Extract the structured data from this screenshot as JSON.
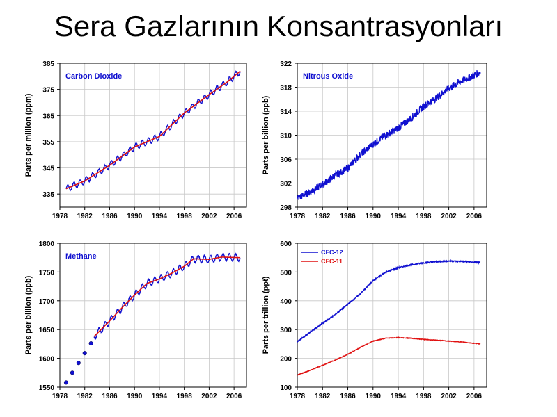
{
  "slide": {
    "title": "Sera Gazlarının Konsantrasyonları"
  },
  "chart_data": [
    {
      "type": "line",
      "id": "co2",
      "title": "Carbon Dioxide",
      "ylabel": "Parts per million (ppm)",
      "xlim": [
        1978,
        2008
      ],
      "ylim": [
        330,
        385
      ],
      "xticks": [
        1978,
        1982,
        1986,
        1990,
        1994,
        1998,
        2002,
        2006
      ],
      "yticks": [
        335,
        345,
        355,
        365,
        375,
        385
      ],
      "grid": true,
      "series": [
        {
          "color": "#1010d0",
          "seasonal_amplitude": 1.2,
          "x": [
            1979,
            1982,
            1986,
            1990,
            1994,
            1998,
            2002,
            2005,
            2007
          ],
          "y": [
            337,
            340,
            346,
            353,
            357,
            366,
            373,
            378,
            382
          ]
        },
        {
          "color": "#e01010",
          "x": [
            1979,
            1982,
            1986,
            1990,
            1994,
            1998,
            2002,
            2005,
            2007
          ],
          "y": [
            337,
            340,
            346,
            353,
            357,
            366,
            373,
            378,
            382
          ]
        }
      ]
    },
    {
      "type": "line",
      "id": "n2o",
      "title": "Nitrous Oxide",
      "ylabel": "Parts per billion (ppb)",
      "xlim": [
        1978,
        2008
      ],
      "ylim": [
        298,
        322
      ],
      "xticks": [
        1978,
        1982,
        1986,
        1990,
        1994,
        1998,
        2002,
        2006
      ],
      "yticks": [
        298,
        302,
        306,
        310,
        314,
        318,
        322
      ],
      "grid": true,
      "series": [
        {
          "color": "#1010d0",
          "noise": 0.6,
          "x": [
            1978,
            1980,
            1982,
            1984,
            1986,
            1988,
            1990,
            1992,
            1994,
            1996,
            1998,
            2000,
            2002,
            2004,
            2007
          ],
          "y": [
            299.5,
            300.5,
            301.8,
            303.3,
            304.5,
            306.8,
            308.5,
            310.0,
            311.2,
            312.8,
            314.8,
            316.2,
            317.8,
            319.0,
            320.5
          ]
        }
      ]
    },
    {
      "type": "line",
      "id": "ch4",
      "title": "Methane",
      "ylabel": "Parts per billion (ppb)",
      "xlim": [
        1978,
        2008
      ],
      "ylim": [
        1550,
        1800
      ],
      "xticks": [
        1978,
        1982,
        1986,
        1990,
        1994,
        1998,
        2002,
        2006
      ],
      "yticks": [
        1550,
        1600,
        1650,
        1700,
        1750,
        1800
      ],
      "grid": true,
      "points": {
        "color": "#1010d0",
        "x": [
          1979,
          1980,
          1981,
          1982,
          1983
        ],
        "y": [
          1558,
          1575,
          1592,
          1609,
          1626
        ]
      },
      "series": [
        {
          "color": "#1010d0",
          "seasonal_amplitude": 6,
          "x": [
            1983.5,
            1986,
            1988,
            1990,
            1992,
            1994,
            1996,
            1998,
            1999.5,
            2002,
            2004,
            2007
          ],
          "y": [
            1638,
            1665,
            1688,
            1710,
            1730,
            1738,
            1748,
            1760,
            1773,
            1772,
            1776,
            1775
          ]
        },
        {
          "color": "#e01010",
          "x": [
            1983.5,
            1986,
            1988,
            1990,
            1992,
            1994,
            1996,
            1998,
            1999.5,
            2002,
            2004,
            2007
          ],
          "y": [
            1638,
            1665,
            1688,
            1710,
            1730,
            1738,
            1748,
            1760,
            1773,
            1772,
            1776,
            1775
          ]
        }
      ]
    },
    {
      "type": "line",
      "id": "cfc",
      "title": "",
      "ylabel": "Parts per trillion (ppt)",
      "xlim": [
        1978,
        2008
      ],
      "ylim": [
        100,
        600
      ],
      "xticks": [
        1978,
        1982,
        1986,
        1990,
        1994,
        1998,
        2002,
        2006
      ],
      "yticks": [
        100,
        200,
        300,
        400,
        500,
        600
      ],
      "grid": true,
      "legend": "top-left",
      "series": [
        {
          "name": "CFC-12",
          "color": "#1010d0",
          "noise": 2,
          "x": [
            1978,
            1980,
            1982,
            1984,
            1986,
            1988,
            1990,
            1992,
            1994,
            1996,
            1998,
            2000,
            2002,
            2004,
            2007
          ],
          "y": [
            258,
            290,
            322,
            352,
            388,
            425,
            470,
            500,
            515,
            525,
            532,
            536,
            538,
            537,
            533
          ]
        },
        {
          "name": "CFC-11",
          "color": "#e01010",
          "noise": 1,
          "x": [
            1978,
            1980,
            1982,
            1984,
            1986,
            1988,
            1990,
            1992,
            1994,
            1996,
            1998,
            2000,
            2002,
            2004,
            2007
          ],
          "y": [
            142,
            158,
            176,
            194,
            214,
            238,
            260,
            270,
            272,
            270,
            266,
            263,
            260,
            257,
            250
          ]
        }
      ]
    }
  ]
}
